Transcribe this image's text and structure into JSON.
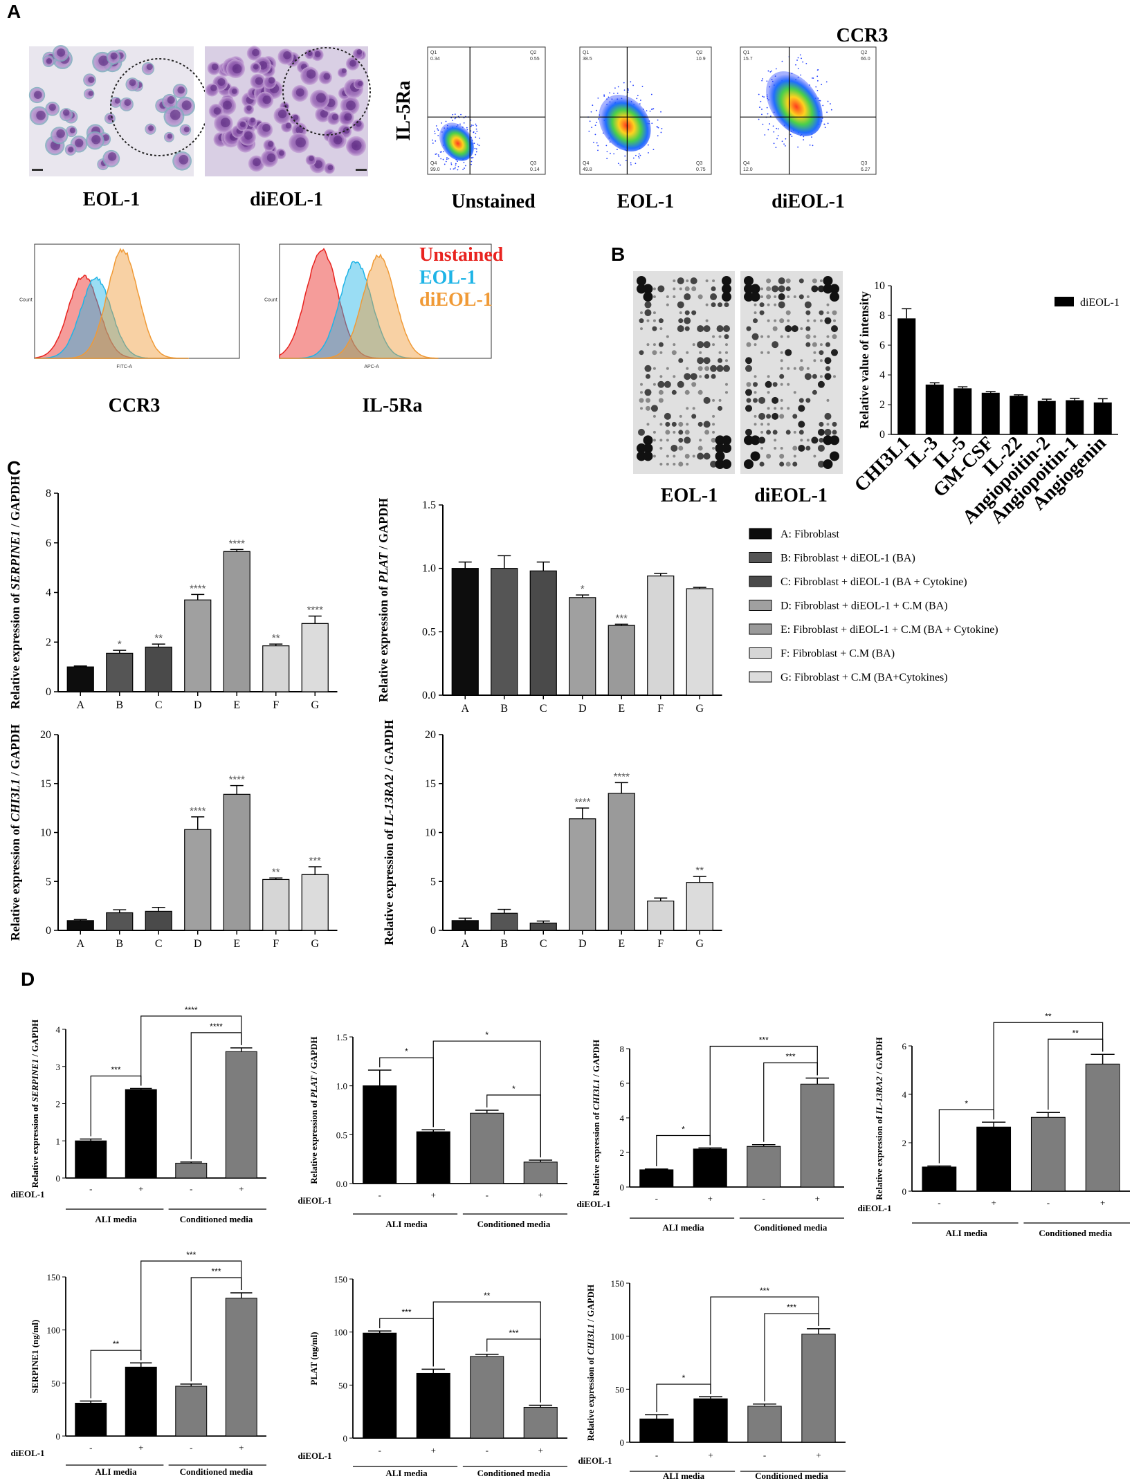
{
  "panel_labels": {
    "a": "A",
    "b": "B",
    "c": "C",
    "d": "D"
  },
  "panel_a": {
    "micro_captions": [
      "EOL-1",
      "diEOL-1"
    ],
    "flow_title": "CCR3",
    "flow_ylabel": "IL-5Ra",
    "flow_plots": [
      {
        "caption": "Unstained",
        "q1": "0.34",
        "q2": "0.55",
        "q3": "0.14",
        "q4": "99.0"
      },
      {
        "caption": "EOL-1",
        "q1": "38.5",
        "q2": "10.9",
        "q3": "0.75",
        "q4": "49.8"
      },
      {
        "caption": "diEOL-1",
        "q1": "15.7",
        "q2": "66.0",
        "q3": "6.27",
        "q4": "12.0"
      }
    ],
    "histograms": [
      {
        "caption": "CCR3",
        "xaxis": "FITC-A"
      },
      {
        "caption": "IL-5Ra",
        "xaxis": "APC-A"
      }
    ],
    "hist_legend": [
      {
        "label": "Unstained",
        "color": "#e8231f"
      },
      {
        "label": "EOL-1",
        "color": "#1fb4e6"
      },
      {
        "label": "diEOL-1",
        "color": "#f09a36"
      }
    ]
  },
  "panel_b": {
    "array_captions": [
      "EOL-1",
      "diEOL-1"
    ]
  },
  "panel_c_legend": [
    {
      "key": "A",
      "label": "A: Fibroblast",
      "color": "#0d0d0d"
    },
    {
      "key": "B",
      "label": "B: Fibroblast + diEOL-1 (BA)",
      "color": "#555555"
    },
    {
      "key": "C",
      "label": "C: Fibroblast + diEOL-1 (BA + Cytokine)",
      "color": "#4a4a4a"
    },
    {
      "key": "D",
      "label": "D: Fibroblast + diEOL-1 + C.M (BA)",
      "color": "#a0a0a0"
    },
    {
      "key": "E",
      "label": "E: Fibroblast + diEOL-1 + C.M (BA + Cytokine)",
      "color": "#9a9a9a"
    },
    {
      "key": "F",
      "label": "F: Fibroblast + C.M (BA)",
      "color": "#d6d6d6"
    },
    {
      "key": "G",
      "label": "G: Fibroblast + C.M (BA+Cytokines)",
      "color": "#dcdcdc"
    }
  ],
  "panel_d_axis": {
    "treatment_label": "diEOL-1",
    "signs": [
      "-",
      "+",
      "-",
      "+"
    ],
    "groups": [
      "ALI media",
      "Conditioned media"
    ]
  },
  "chart_data": [
    {
      "id": "B",
      "type": "bar",
      "title": "",
      "ylabel": "Relative value of intensity",
      "ylim": [
        0,
        10
      ],
      "yticks": [
        "0",
        "2",
        "4",
        "6",
        "8",
        "10"
      ],
      "legend": "diEOL-1",
      "categories": [
        "CHI3L1",
        "IL-3",
        "IL-5",
        "GM-CSF",
        "IL-22",
        "Angiopoitin-2",
        "Angiopoitin-1",
        "Angiogenin"
      ],
      "values": [
        7.8,
        3.35,
        3.1,
        2.8,
        2.6,
        2.25,
        2.3,
        2.15
      ],
      "errors": [
        0.65,
        0.12,
        0.1,
        0.08,
        0.06,
        0.12,
        0.12,
        0.25
      ]
    },
    {
      "id": "C1",
      "type": "bar",
      "ylabel_pre": "Relative expression of",
      "ylabel_gene": "SERPINE1",
      "ylabel_post": "/ GAPDH",
      "ylim": [
        0,
        8
      ],
      "yticks": [
        "0",
        "2",
        "4",
        "6",
        "8"
      ],
      "categories": [
        "A",
        "B",
        "C",
        "D",
        "E",
        "F",
        "G"
      ],
      "values": [
        1.0,
        1.55,
        1.8,
        3.7,
        5.65,
        1.85,
        2.75
      ],
      "errors": [
        0.04,
        0.12,
        0.12,
        0.22,
        0.08,
        0.07,
        0.3
      ],
      "sig": [
        "",
        "*",
        "**",
        "****",
        "****",
        "**",
        "****"
      ]
    },
    {
      "id": "C2",
      "type": "bar",
      "ylabel_pre": "Relative expression of",
      "ylabel_gene": "PLAT",
      "ylabel_post": "/ GAPDH",
      "ylim": [
        0,
        1.5
      ],
      "yticks": [
        "0.0",
        "0.5",
        "1.0",
        "1.5"
      ],
      "categories": [
        "A",
        "B",
        "C",
        "D",
        "E",
        "F",
        "G"
      ],
      "values": [
        1.0,
        1.0,
        0.98,
        0.77,
        0.55,
        0.94,
        0.84
      ],
      "errors": [
        0.05,
        0.1,
        0.07,
        0.02,
        0.01,
        0.02,
        0.01
      ],
      "sig": [
        "",
        "",
        "",
        "*",
        "***",
        "",
        ""
      ]
    },
    {
      "id": "C3",
      "type": "bar",
      "ylabel_pre": "Relative expression of",
      "ylabel_gene": "CHI3L1",
      "ylabel_post": "/ GAPDH",
      "ylim": [
        0,
        20
      ],
      "yticks": [
        "0",
        "5",
        "10",
        "15",
        "20"
      ],
      "categories": [
        "A",
        "B",
        "C",
        "D",
        "E",
        "F",
        "G"
      ],
      "values": [
        1.0,
        1.8,
        1.95,
        10.3,
        13.9,
        5.2,
        5.7
      ],
      "errors": [
        0.1,
        0.3,
        0.4,
        1.3,
        0.9,
        0.15,
        0.8
      ],
      "sig": [
        "",
        "",
        "",
        "****",
        "****",
        "**",
        "***"
      ]
    },
    {
      "id": "C4",
      "type": "bar",
      "ylabel_pre": "Relative expression of",
      "ylabel_gene": "IL-13RA2",
      "ylabel_post": "/ GAPDH",
      "ylim": [
        0,
        20
      ],
      "yticks": [
        "0",
        "5",
        "10",
        "15",
        "20"
      ],
      "categories": [
        "A",
        "B",
        "C",
        "D",
        "E",
        "F",
        "G"
      ],
      "values": [
        1.0,
        1.75,
        0.75,
        11.4,
        14.0,
        3.0,
        4.9
      ],
      "errors": [
        0.25,
        0.4,
        0.2,
        1.1,
        1.1,
        0.3,
        0.6
      ],
      "sig": [
        "",
        "",
        "",
        "****",
        "****",
        "",
        "**"
      ]
    },
    {
      "id": "D1",
      "type": "bar",
      "ylabel_pre": "Relative expression of",
      "ylabel_gene": "SERPINE1",
      "ylabel_post": "/ GAPDH",
      "ylim": [
        0,
        4
      ],
      "yticks": [
        "0",
        "1",
        "2",
        "3",
        "4"
      ],
      "values": [
        1.0,
        2.38,
        0.4,
        3.4
      ],
      "errors": [
        0.05,
        0.03,
        0.03,
        0.1
      ],
      "brackets": [
        {
          "from": 0,
          "to": 1,
          "label": "***"
        },
        {
          "from": 1,
          "to": 3,
          "label": "****"
        },
        {
          "from": 2,
          "to": 3,
          "label": "****"
        }
      ]
    },
    {
      "id": "D2",
      "type": "bar",
      "ylabel_pre": "Relative expression of",
      "ylabel_gene": "PLAT",
      "ylabel_post": "/ GAPDH",
      "ylim": [
        0,
        1.5
      ],
      "yticks": [
        "0.0",
        "0.5",
        "1.0",
        "1.5"
      ],
      "values": [
        1.0,
        0.53,
        0.72,
        0.22
      ],
      "errors": [
        0.16,
        0.02,
        0.03,
        0.02
      ],
      "brackets": [
        {
          "from": 0,
          "to": 1,
          "label": "*"
        },
        {
          "from": 1,
          "to": 3,
          "label": "*"
        },
        {
          "from": 2,
          "to": 3,
          "label": "*"
        }
      ]
    },
    {
      "id": "D3",
      "type": "bar",
      "ylabel_pre": "Relative expression of",
      "ylabel_gene": "CHI3L1",
      "ylabel_post": "/ GAPDH",
      "ylim": [
        0,
        8
      ],
      "yticks": [
        "0",
        "2",
        "4",
        "6",
        "8"
      ],
      "values": [
        1.0,
        2.2,
        2.35,
        5.95
      ],
      "errors": [
        0.04,
        0.06,
        0.1,
        0.35
      ],
      "brackets": [
        {
          "from": 0,
          "to": 1,
          "label": "*"
        },
        {
          "from": 1,
          "to": 3,
          "label": "***"
        },
        {
          "from": 2,
          "to": 3,
          "label": "***"
        }
      ]
    },
    {
      "id": "D4",
      "type": "bar",
      "ylabel_pre": "Relative expression of",
      "ylabel_gene": "IL-13RA2",
      "ylabel_post": "/ GAPDH",
      "ylim": [
        0,
        6
      ],
      "yticks": [
        "0",
        "2",
        "4",
        "6"
      ],
      "values": [
        1.0,
        2.65,
        3.05,
        5.25
      ],
      "errors": [
        0.04,
        0.2,
        0.2,
        0.4
      ],
      "brackets": [
        {
          "from": 0,
          "to": 1,
          "label": "*"
        },
        {
          "from": 1,
          "to": 3,
          "label": "**"
        },
        {
          "from": 2,
          "to": 3,
          "label": "**"
        }
      ]
    },
    {
      "id": "D5",
      "type": "bar",
      "ylabel_pre": "SERPINE1",
      "ylabel_gene": "",
      "ylabel_post": "(ng/ml)",
      "ylim": [
        0,
        150
      ],
      "yticks": [
        "0",
        "50",
        "100",
        "150"
      ],
      "values": [
        31,
        65,
        47,
        130
      ],
      "errors": [
        2,
        4,
        2,
        5
      ],
      "brackets": [
        {
          "from": 0,
          "to": 1,
          "label": "**"
        },
        {
          "from": 1,
          "to": 3,
          "label": "***"
        },
        {
          "from": 2,
          "to": 3,
          "label": "***"
        }
      ]
    },
    {
      "id": "D6",
      "type": "bar",
      "ylabel_pre": "PLAT",
      "ylabel_gene": "",
      "ylabel_post": "(ng/ml)",
      "ylim": [
        0,
        150
      ],
      "yticks": [
        "0",
        "50",
        "100",
        "150"
      ],
      "values": [
        99,
        61,
        77,
        29
      ],
      "errors": [
        2,
        4,
        2,
        2
      ],
      "brackets": [
        {
          "from": 0,
          "to": 1,
          "label": "***"
        },
        {
          "from": 1,
          "to": 3,
          "label": "**"
        },
        {
          "from": 2,
          "to": 3,
          "label": "***"
        }
      ]
    },
    {
      "id": "D7",
      "type": "bar",
      "ylabel_pre": "Relative expression of",
      "ylabel_gene": "CHI3L1",
      "ylabel_post": "/ GAPDH",
      "ylim": [
        0,
        150
      ],
      "yticks": [
        "0",
        "50",
        "100",
        "150"
      ],
      "values": [
        22,
        41,
        34,
        102
      ],
      "errors": [
        4,
        2,
        2,
        5
      ],
      "brackets": [
        {
          "from": 0,
          "to": 1,
          "label": "*"
        },
        {
          "from": 1,
          "to": 3,
          "label": "***"
        },
        {
          "from": 2,
          "to": 3,
          "label": "***"
        }
      ]
    }
  ]
}
